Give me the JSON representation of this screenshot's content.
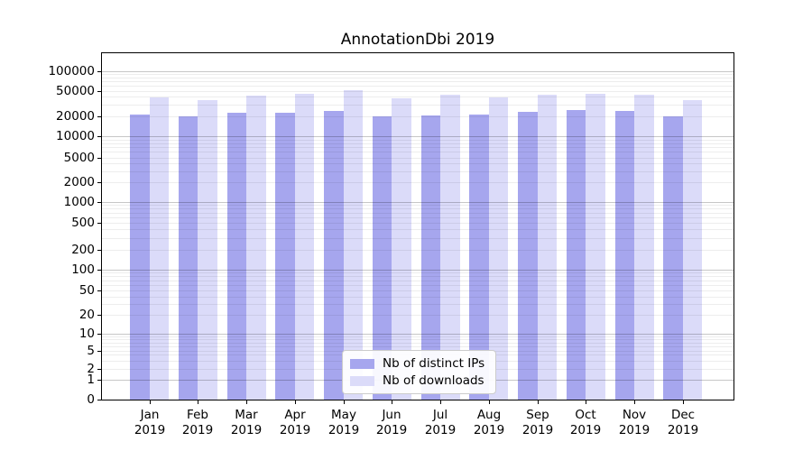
{
  "chart_data": {
    "type": "bar",
    "title": "AnnotationDbi 2019",
    "categories": [
      "Jan",
      "Feb",
      "Mar",
      "Apr",
      "May",
      "Jun",
      "Jul",
      "Aug",
      "Sep",
      "Oct",
      "Nov",
      "Dec"
    ],
    "category_year": "2019",
    "series": [
      {
        "name": "Nb of distinct IPs",
        "color": "#a6a6ee",
        "values": [
          21300,
          19700,
          22700,
          22700,
          24200,
          19700,
          20600,
          21300,
          23400,
          25000,
          24200,
          19900
        ]
      },
      {
        "name": "Nb of downloads",
        "color": "#dbdbf9",
        "values": [
          38800,
          35300,
          41400,
          44100,
          51600,
          37600,
          42700,
          38800,
          42700,
          44300,
          43600,
          36200
        ]
      }
    ],
    "y_axis": {
      "scale": "symlog",
      "tick_labels": [
        "0",
        "1",
        "2",
        "5",
        "10",
        "20",
        "50",
        "100",
        "200",
        "500",
        "1000",
        "2000",
        "5000",
        "10000",
        "20000",
        "50000",
        "100000"
      ]
    },
    "ylim": [
      0,
      200000
    ],
    "grid": true,
    "legend_position": "lower center"
  },
  "legend": {
    "items": [
      {
        "label": "Nb of distinct IPs"
      },
      {
        "label": "Nb of downloads"
      }
    ]
  },
  "colors": {
    "ips_bar": "#a6a6ee",
    "downloads_bar": "#dbdbf9",
    "grid_major": "#c6c6c6",
    "grid_minor": "#ededed",
    "spine": "#000000"
  }
}
